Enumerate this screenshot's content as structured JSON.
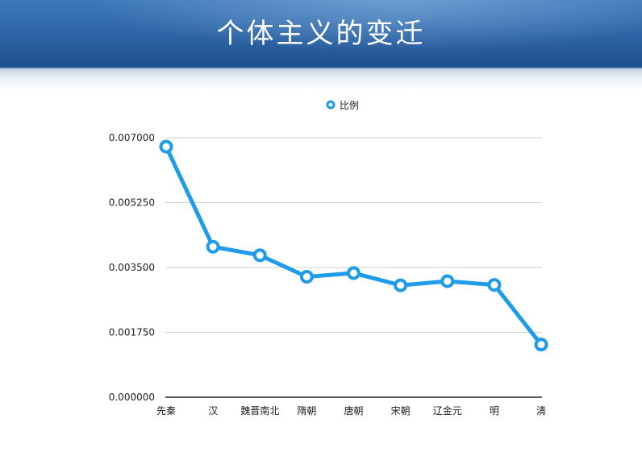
{
  "slide": {
    "title": "个体主义的变迁"
  },
  "colors": {
    "series": "#1e9bea",
    "banner": "#2f67a8",
    "grid": "#cfcfcf",
    "axis": "#222222"
  },
  "chart_data": {
    "type": "line",
    "categories": [
      "先秦",
      "汉",
      "魏晋南北",
      "隋朝",
      "唐朝",
      "宋朝",
      "辽金元",
      "明",
      "清"
    ],
    "series": [
      {
        "name": "比例",
        "values": [
          0.00676,
          0.00406,
          0.00383,
          0.00325,
          0.00335,
          0.00302,
          0.00313,
          0.00303,
          0.00142
        ]
      }
    ],
    "yticks": [
      "0.000000",
      "0.001750",
      "0.003500",
      "0.005250",
      "0.007000"
    ],
    "ylim": [
      0,
      0.007
    ],
    "grid": true,
    "legend": "top-center"
  }
}
